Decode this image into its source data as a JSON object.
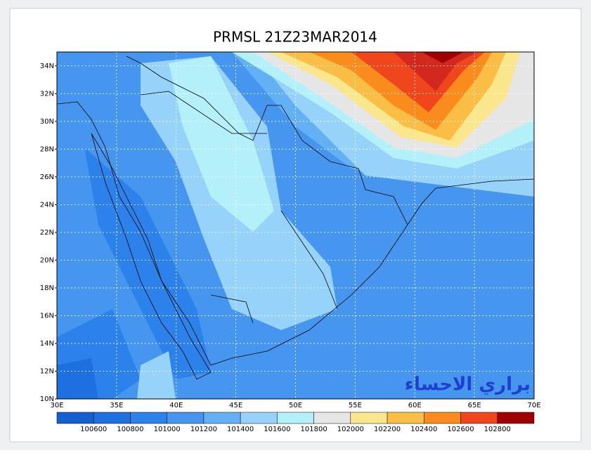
{
  "title": "PRMSL  21Z23MAR2014",
  "watermark": "براري الاحساء",
  "lat_labels": [
    "10N",
    "12N",
    "14N",
    "16N",
    "18N",
    "20N",
    "22N",
    "24N",
    "26N",
    "28N",
    "30N",
    "32N",
    "34N"
  ],
  "lon_labels": [
    "30E",
    "35E",
    "40E",
    "45E",
    "50E",
    "55E",
    "60E",
    "65E",
    "70E"
  ],
  "colorbar": {
    "labels": [
      "100600",
      "100800",
      "101000",
      "101200",
      "101400",
      "101600",
      "101800",
      "102000",
      "102200",
      "102400",
      "102600",
      "102800"
    ],
    "colors": [
      "#1460d0",
      "#1e70e0",
      "#2c82ea",
      "#4696f0",
      "#64b0f5",
      "#96d2fa",
      "#b4f0fa",
      "#e6e6e6",
      "#fae68c",
      "#fabe46",
      "#fa8c1e",
      "#f0461e",
      "#a00000"
    ]
  }
}
